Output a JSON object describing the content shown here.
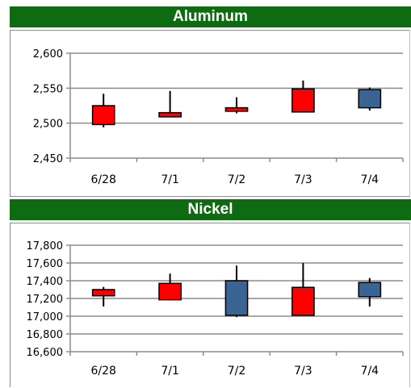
{
  "chart_data": [
    {
      "type": "candlestick",
      "title": "Aluminum",
      "categories": [
        "6/28",
        "7/1",
        "7/2",
        "7/3",
        "7/4"
      ],
      "ylim": [
        2450,
        2600
      ],
      "yticks": [
        "2,450",
        "2,500",
        "2,550",
        "2,600"
      ],
      "ytick_values": [
        2450,
        2500,
        2550,
        2600
      ],
      "series": [
        {
          "open": 2498,
          "close": 2525,
          "high": 2542,
          "low": 2494,
          "color": "#ff0000"
        },
        {
          "open": 2509,
          "close": 2515,
          "high": 2546,
          "low": 2509,
          "color": "#ff0000"
        },
        {
          "open": 2517,
          "close": 2522,
          "high": 2537,
          "low": 2514,
          "color": "#ff0000"
        },
        {
          "open": 2516,
          "close": 2549,
          "high": 2561,
          "low": 2516,
          "color": "#ff0000"
        },
        {
          "open": 2548,
          "close": 2522,
          "high": 2551,
          "low": 2518,
          "color": "#3a6494"
        }
      ],
      "grid": true
    },
    {
      "type": "candlestick",
      "title": "Nickel",
      "categories": [
        "6/28",
        "7/1",
        "7/2",
        "7/3",
        "7/4"
      ],
      "ylim": [
        16600,
        17800
      ],
      "yticks": [
        "16,600",
        "16,800",
        "17,000",
        "17,200",
        "17,400",
        "17,600",
        "17,800"
      ],
      "ytick_values": [
        16600,
        16800,
        17000,
        17200,
        17400,
        17600,
        17800
      ],
      "series": [
        {
          "open": 17230,
          "close": 17300,
          "high": 17330,
          "low": 17110,
          "color": "#ff0000"
        },
        {
          "open": 17185,
          "close": 17370,
          "high": 17480,
          "low": 17185,
          "color": "#ff0000"
        },
        {
          "open": 17400,
          "close": 17010,
          "high": 17570,
          "low": 16990,
          "color": "#3a6494"
        },
        {
          "open": 17010,
          "close": 17325,
          "high": 17600,
          "low": 17010,
          "color": "#ff0000"
        },
        {
          "open": 17380,
          "close": 17220,
          "high": 17430,
          "low": 17110,
          "color": "#3a6494"
        }
      ],
      "grid": true
    }
  ]
}
